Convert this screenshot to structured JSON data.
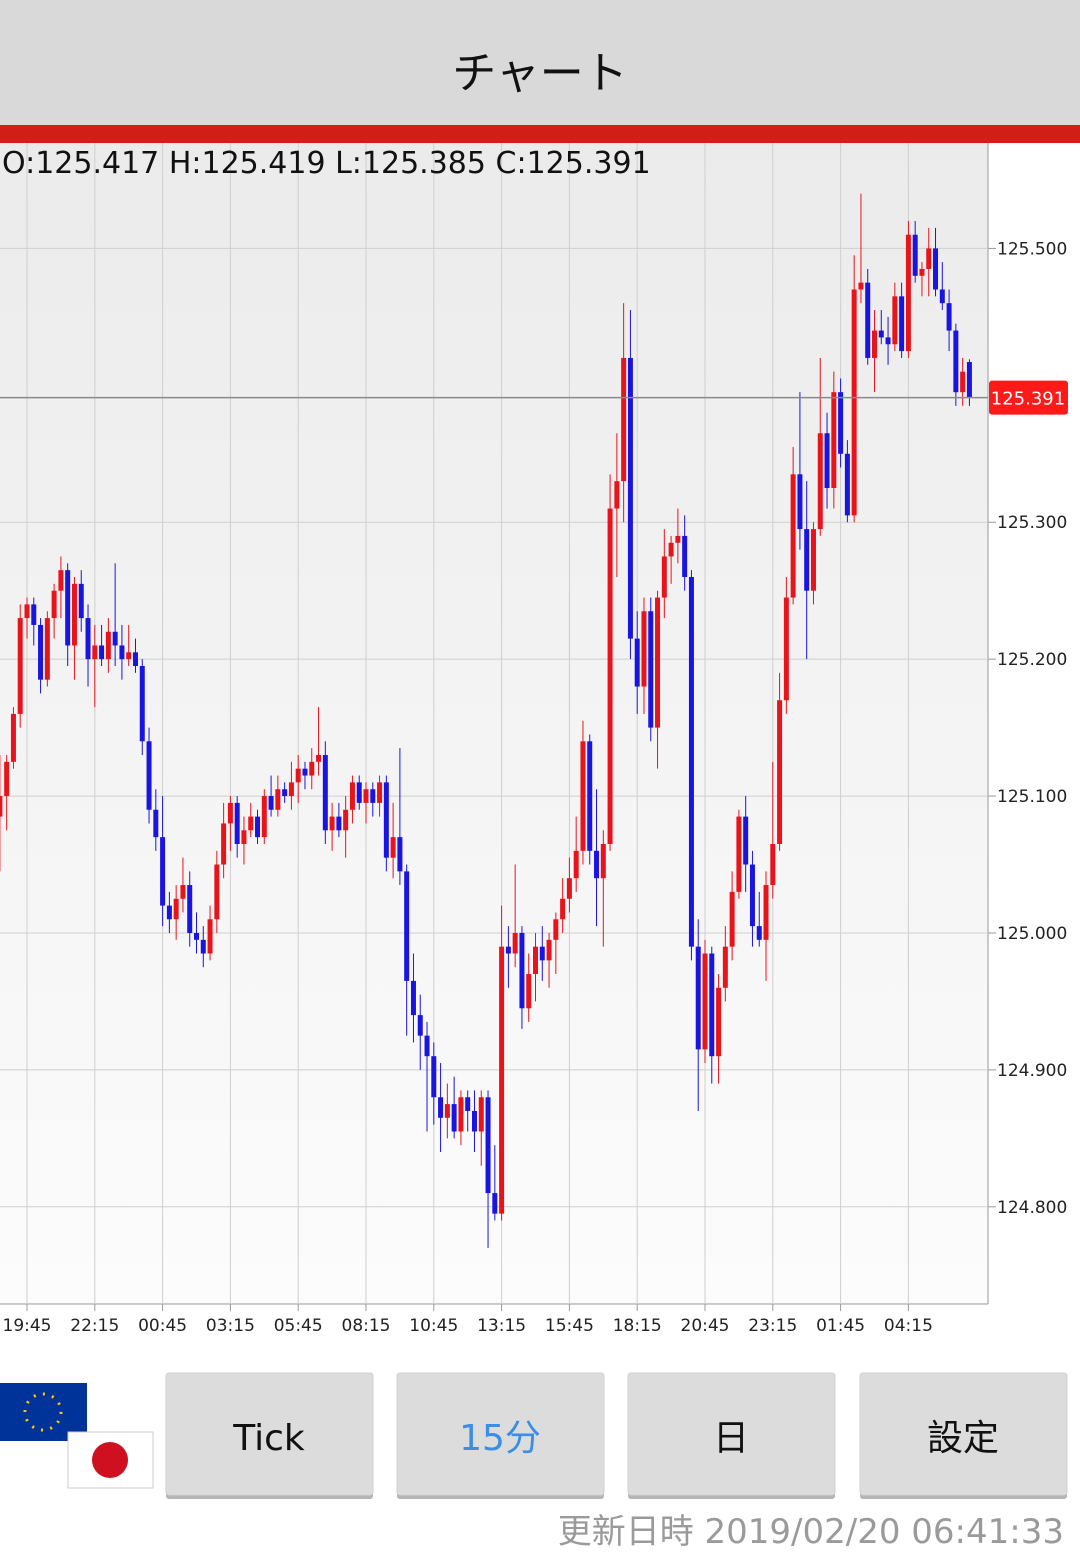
{
  "header": {
    "title": "チャート"
  },
  "chart_data": {
    "type": "candlestick",
    "ohlc_labels": [
      "O:",
      "H:",
      "L:",
      "C:"
    ],
    "up_color": "#e8141c",
    "down_color": "#1a14e0",
    "ylim": [
      124.729,
      125.577
    ],
    "yticks": [
      {
        "value": 124.8,
        "label": "124.800"
      },
      {
        "value": 124.9,
        "label": "124.900"
      },
      {
        "value": 125.0,
        "label": "125.000"
      },
      {
        "value": 125.1,
        "label": "125.100"
      },
      {
        "value": 125.2,
        "label": "125.200"
      },
      {
        "value": 125.3,
        "label": "125.300"
      },
      {
        "value": 125.5,
        "label": "125.500"
      }
    ],
    "grid": true,
    "categories": [
      null,
      null,
      null,
      null,
      "19:45",
      null,
      null,
      null,
      null,
      null,
      null,
      null,
      null,
      null,
      "22:15",
      null,
      null,
      null,
      null,
      null,
      null,
      null,
      null,
      null,
      "00:45",
      null,
      null,
      null,
      null,
      null,
      null,
      null,
      null,
      null,
      "03:15",
      null,
      null,
      null,
      null,
      null,
      null,
      null,
      null,
      null,
      "05:45",
      null,
      null,
      null,
      null,
      null,
      null,
      null,
      null,
      null,
      "08:15",
      null,
      null,
      null,
      null,
      null,
      null,
      null,
      null,
      null,
      "10:45",
      null,
      null,
      null,
      null,
      null,
      null,
      null,
      null,
      null,
      "13:15",
      null,
      null,
      null,
      null,
      null,
      null,
      null,
      null,
      null,
      "15:45",
      null,
      null,
      null,
      null,
      null,
      null,
      null,
      null,
      null,
      "18:15",
      null,
      null,
      null,
      null,
      null,
      null,
      null,
      null,
      null,
      "20:45",
      null,
      null,
      null,
      null,
      null,
      null,
      null,
      null,
      null,
      "23:15",
      null,
      null,
      null,
      null,
      null,
      null,
      null,
      null,
      null,
      "01:45",
      null,
      null,
      null,
      null,
      null,
      null,
      null,
      null,
      null,
      "04:15",
      null,
      null,
      null,
      null,
      null,
      null,
      null,
      null,
      null
    ],
    "ohlc": [
      [
        125.085,
        125.13,
        125.045,
        125.1
      ],
      [
        125.1,
        125.13,
        125.075,
        125.125
      ],
      [
        125.125,
        125.165,
        125.12,
        125.16
      ],
      [
        125.16,
        125.24,
        125.15,
        125.23
      ],
      [
        125.23,
        125.245,
        125.215,
        125.24
      ],
      [
        125.24,
        125.245,
        125.21,
        125.225
      ],
      [
        125.225,
        125.23,
        125.175,
        125.185
      ],
      [
        125.185,
        125.235,
        125.18,
        125.23
      ],
      [
        125.23,
        125.255,
        125.215,
        125.25
      ],
      [
        125.25,
        125.275,
        125.23,
        125.265
      ],
      [
        125.265,
        125.27,
        125.195,
        125.21
      ],
      [
        125.21,
        125.26,
        125.185,
        125.255
      ],
      [
        125.255,
        125.265,
        125.22,
        125.23
      ],
      [
        125.23,
        125.24,
        125.18,
        125.2
      ],
      [
        125.2,
        125.225,
        125.165,
        125.21
      ],
      [
        125.21,
        125.225,
        125.195,
        125.2
      ],
      [
        125.2,
        125.23,
        125.19,
        125.22
      ],
      [
        125.22,
        125.27,
        125.195,
        125.21
      ],
      [
        125.21,
        125.225,
        125.185,
        125.2
      ],
      [
        125.2,
        125.225,
        125.195,
        125.205
      ],
      [
        125.205,
        125.215,
        125.19,
        125.195
      ],
      [
        125.195,
        125.2,
        125.13,
        125.14
      ],
      [
        125.14,
        125.15,
        125.08,
        125.09
      ],
      [
        125.09,
        125.105,
        125.06,
        125.07
      ],
      [
        125.07,
        125.1,
        125.005,
        125.02
      ],
      [
        125.02,
        125.03,
        125.0,
        125.01
      ],
      [
        125.01,
        125.035,
        124.995,
        125.025
      ],
      [
        125.025,
        125.055,
        125.015,
        125.035
      ],
      [
        125.035,
        125.045,
        124.99,
        125.0
      ],
      [
        125.0,
        125.015,
        124.985,
        124.995
      ],
      [
        124.995,
        125.005,
        124.975,
        124.985
      ],
      [
        124.985,
        125.02,
        124.98,
        125.01
      ],
      [
        125.01,
        125.06,
        125.0,
        125.05
      ],
      [
        125.05,
        125.095,
        125.04,
        125.08
      ],
      [
        125.08,
        125.1,
        125.06,
        125.095
      ],
      [
        125.095,
        125.1,
        125.055,
        125.065
      ],
      [
        125.065,
        125.085,
        125.05,
        125.075
      ],
      [
        125.075,
        125.095,
        125.07,
        125.085
      ],
      [
        125.085,
        125.09,
        125.065,
        125.07
      ],
      [
        125.07,
        125.105,
        125.065,
        125.1
      ],
      [
        125.1,
        125.115,
        125.085,
        125.09
      ],
      [
        125.09,
        125.115,
        125.085,
        125.105
      ],
      [
        125.105,
        125.11,
        125.095,
        125.1
      ],
      [
        125.1,
        125.125,
        125.09,
        125.11
      ],
      [
        125.11,
        125.13,
        125.095,
        125.12
      ],
      [
        125.12,
        125.125,
        125.105,
        125.115
      ],
      [
        125.115,
        125.135,
        125.105,
        125.125
      ],
      [
        125.125,
        125.165,
        125.115,
        125.13
      ],
      [
        125.13,
        125.14,
        125.065,
        125.075
      ],
      [
        125.075,
        125.095,
        125.06,
        125.085
      ],
      [
        125.085,
        125.095,
        125.07,
        125.075
      ],
      [
        125.075,
        125.1,
        125.055,
        125.09
      ],
      [
        125.09,
        125.115,
        125.08,
        125.11
      ],
      [
        125.11,
        125.115,
        125.09,
        125.095
      ],
      [
        125.095,
        125.11,
        125.08,
        125.105
      ],
      [
        125.105,
        125.11,
        125.085,
        125.095
      ],
      [
        125.095,
        125.115,
        125.085,
        125.11
      ],
      [
        125.11,
        125.115,
        125.045,
        125.055
      ],
      [
        125.055,
        125.095,
        125.04,
        125.07
      ],
      [
        125.07,
        125.135,
        125.035,
        125.045
      ],
      [
        125.045,
        125.05,
        124.925,
        124.965
      ],
      [
        124.965,
        124.985,
        124.92,
        124.94
      ],
      [
        124.94,
        124.955,
        124.9,
        124.925
      ],
      [
        124.925,
        124.935,
        124.855,
        124.91
      ],
      [
        124.91,
        124.92,
        124.86,
        124.88
      ],
      [
        124.88,
        124.905,
        124.84,
        124.865
      ],
      [
        124.865,
        124.89,
        124.85,
        124.875
      ],
      [
        124.875,
        124.895,
        124.85,
        124.855
      ],
      [
        124.855,
        124.885,
        124.845,
        124.88
      ],
      [
        124.88,
        124.885,
        124.855,
        124.87
      ],
      [
        124.87,
        124.885,
        124.84,
        124.855
      ],
      [
        124.855,
        124.885,
        124.83,
        124.88
      ],
      [
        124.88,
        124.885,
        124.77,
        124.81
      ],
      [
        124.81,
        124.845,
        124.79,
        124.795
      ],
      [
        124.795,
        125.02,
        124.79,
        124.99
      ],
      [
        124.99,
        125.005,
        124.96,
        124.985
      ],
      [
        124.985,
        125.05,
        124.975,
        125.0
      ],
      [
        125.0,
        125.005,
        124.93,
        124.945
      ],
      [
        124.945,
        124.985,
        124.935,
        124.97
      ],
      [
        124.97,
        125.0,
        124.95,
        124.99
      ],
      [
        124.99,
        125.005,
        124.965,
        124.98
      ],
      [
        124.98,
        125.0,
        124.96,
        124.995
      ],
      [
        124.995,
        125.015,
        124.97,
        125.01
      ],
      [
        125.01,
        125.04,
        125.0,
        125.025
      ],
      [
        125.025,
        125.055,
        125.015,
        125.04
      ],
      [
        125.04,
        125.085,
        125.03,
        125.06
      ],
      [
        125.06,
        125.155,
        125.05,
        125.14
      ],
      [
        125.14,
        125.145,
        125.05,
        125.06
      ],
      [
        125.06,
        125.105,
        125.005,
        125.04
      ],
      [
        125.04,
        125.075,
        124.99,
        125.065
      ],
      [
        125.065,
        125.335,
        125.06,
        125.31
      ],
      [
        125.31,
        125.365,
        125.26,
        125.33
      ],
      [
        125.33,
        125.46,
        125.3,
        125.42
      ],
      [
        125.42,
        125.455,
        125.2,
        125.215
      ],
      [
        125.215,
        125.235,
        125.16,
        125.18
      ],
      [
        125.18,
        125.245,
        125.16,
        125.235
      ],
      [
        125.235,
        125.245,
        125.14,
        125.15
      ],
      [
        125.15,
        125.25,
        125.12,
        125.245
      ],
      [
        125.245,
        125.295,
        125.23,
        125.275
      ],
      [
        125.275,
        125.29,
        125.255,
        125.285
      ],
      [
        125.285,
        125.31,
        125.27,
        125.29
      ],
      [
        125.29,
        125.305,
        125.25,
        125.26
      ],
      [
        125.26,
        125.265,
        124.98,
        124.99
      ],
      [
        124.99,
        125.01,
        124.87,
        124.915
      ],
      [
        124.915,
        124.995,
        124.905,
        124.985
      ],
      [
        124.985,
        124.99,
        124.89,
        124.91
      ],
      [
        124.91,
        124.97,
        124.89,
        124.96
      ],
      [
        124.96,
        125.005,
        124.95,
        124.99
      ],
      [
        124.99,
        125.045,
        124.98,
        125.03
      ],
      [
        125.03,
        125.09,
        125.025,
        125.085
      ],
      [
        125.085,
        125.1,
        125.03,
        125.05
      ],
      [
        125.05,
        125.06,
        124.99,
        125.005
      ],
      [
        125.005,
        125.03,
        124.99,
        124.995
      ],
      [
        124.995,
        125.045,
        124.965,
        125.035
      ],
      [
        125.035,
        125.125,
        125.025,
        125.065
      ],
      [
        125.065,
        125.19,
        125.06,
        125.17
      ],
      [
        125.17,
        125.26,
        125.16,
        125.245
      ],
      [
        125.245,
        125.355,
        125.24,
        125.335
      ],
      [
        125.335,
        125.395,
        125.28,
        125.295
      ],
      [
        125.295,
        125.33,
        125.2,
        125.25
      ],
      [
        125.25,
        125.3,
        125.24,
        125.295
      ],
      [
        125.295,
        125.42,
        125.29,
        125.365
      ],
      [
        125.365,
        125.38,
        125.31,
        125.325
      ],
      [
        125.325,
        125.41,
        125.31,
        125.395
      ],
      [
        125.395,
        125.405,
        125.34,
        125.35
      ],
      [
        125.35,
        125.36,
        125.3,
        125.305
      ],
      [
        125.305,
        125.495,
        125.3,
        125.47
      ],
      [
        125.47,
        125.54,
        125.46,
        125.475
      ],
      [
        125.475,
        125.485,
        125.415,
        125.42
      ],
      [
        125.42,
        125.455,
        125.395,
        125.44
      ],
      [
        125.44,
        125.455,
        125.43,
        125.435
      ],
      [
        125.435,
        125.45,
        125.415,
        125.43
      ],
      [
        125.43,
        125.475,
        125.425,
        125.465
      ],
      [
        125.465,
        125.475,
        125.42,
        125.425
      ],
      [
        125.425,
        125.52,
        125.42,
        125.51
      ],
      [
        125.51,
        125.52,
        125.475,
        125.48
      ],
      [
        125.48,
        125.49,
        125.465,
        125.485
      ],
      [
        125.485,
        125.515,
        125.465,
        125.5
      ],
      [
        125.5,
        125.515,
        125.465,
        125.47
      ],
      [
        125.47,
        125.49,
        125.455,
        125.46
      ],
      [
        125.46,
        125.47,
        125.425,
        125.44
      ],
      [
        125.44,
        125.445,
        125.385,
        125.395
      ],
      [
        125.395,
        125.42,
        125.385,
        125.41
      ],
      [
        125.417,
        125.419,
        125.385,
        125.391
      ]
    ]
  },
  "buttons": [
    "Tick",
    "15分",
    "日",
    "設定"
  ],
  "footer": {
    "label": "更新日時",
    "timestamp": "2019/02/20 06:41:33"
  }
}
